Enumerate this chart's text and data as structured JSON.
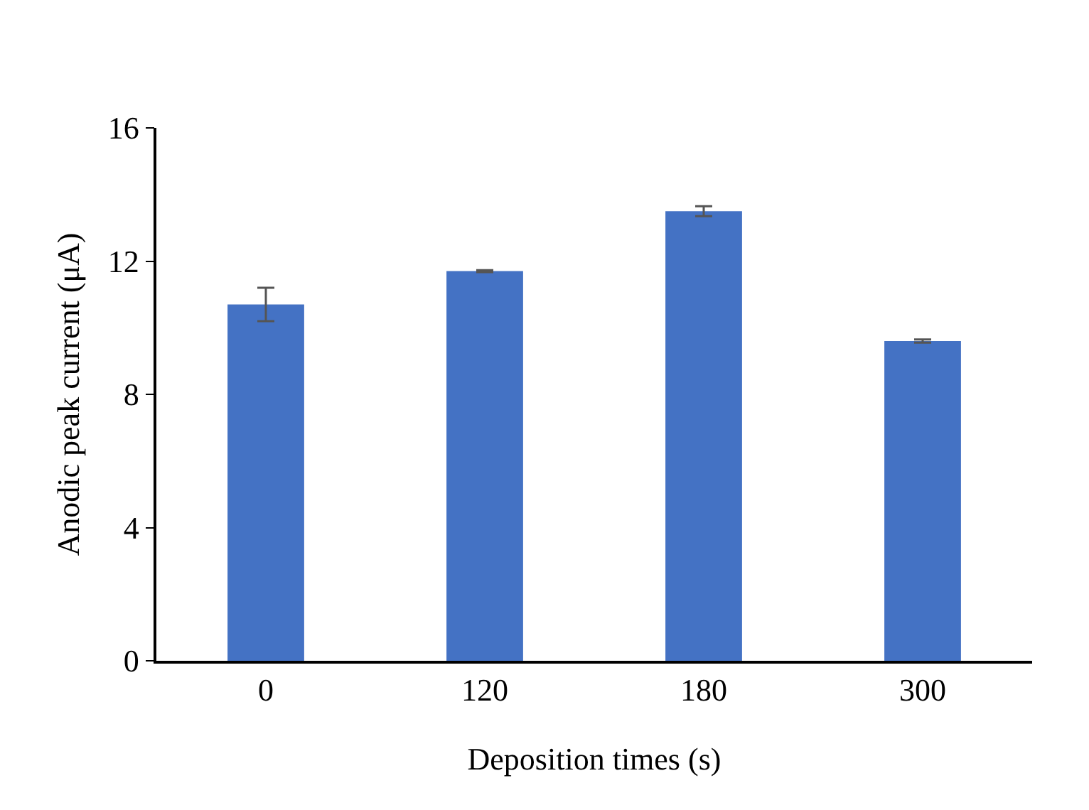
{
  "chart_data": {
    "type": "bar",
    "xlabel": "Deposition times (s)",
    "ylabel": "Anodic peak current (μA)",
    "categories": [
      "0",
      "120",
      "180",
      "300"
    ],
    "values": [
      10.7,
      11.7,
      13.5,
      9.6
    ],
    "errors": [
      0.5,
      0.03,
      0.15,
      0.05
    ],
    "color": "#4472c4",
    "ylim": [
      0,
      16
    ],
    "yticks": [
      0,
      4,
      8,
      12,
      16
    ],
    "grid": false,
    "legend": false
  }
}
